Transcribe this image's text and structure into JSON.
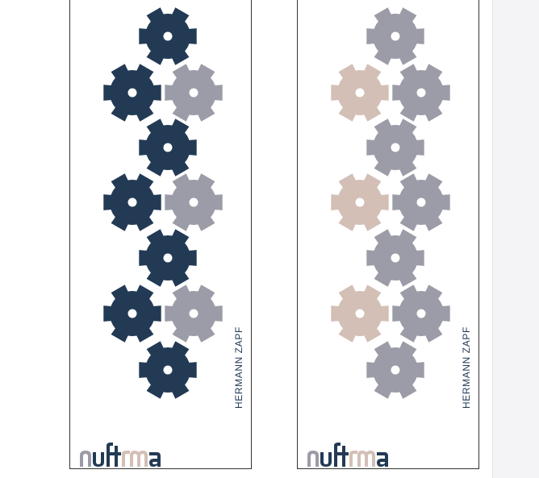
{
  "document": {
    "panels": [
      {
        "name": "panel-dark",
        "vertical_text": "HERMANN ZAPF",
        "text_color": "#233a55",
        "gear_colors": {
          "center": "#233a55",
          "left": "#233a55",
          "right": "#9c9ca8"
        },
        "logo_colors": {
          "n1": "#9c9ca8",
          "u": "#233a55",
          "ft": "#233a55",
          "r": "#d3bfb6",
          "m": "#d3bfb6",
          "a": "#233a55"
        }
      },
      {
        "name": "panel-light",
        "vertical_text": "HERMANN ZAPF",
        "text_color": "#233a55",
        "gear_colors": {
          "center": "#9c9ca8",
          "left": "#d3bfb6",
          "right": "#9c9ca8"
        },
        "logo_colors": {
          "n1": "#9c9ca8",
          "u": "#233a55",
          "ft": "#233a55",
          "r": "#d3bfb6",
          "m": "#d3bfb6",
          "a": "#233a55"
        }
      }
    ]
  }
}
